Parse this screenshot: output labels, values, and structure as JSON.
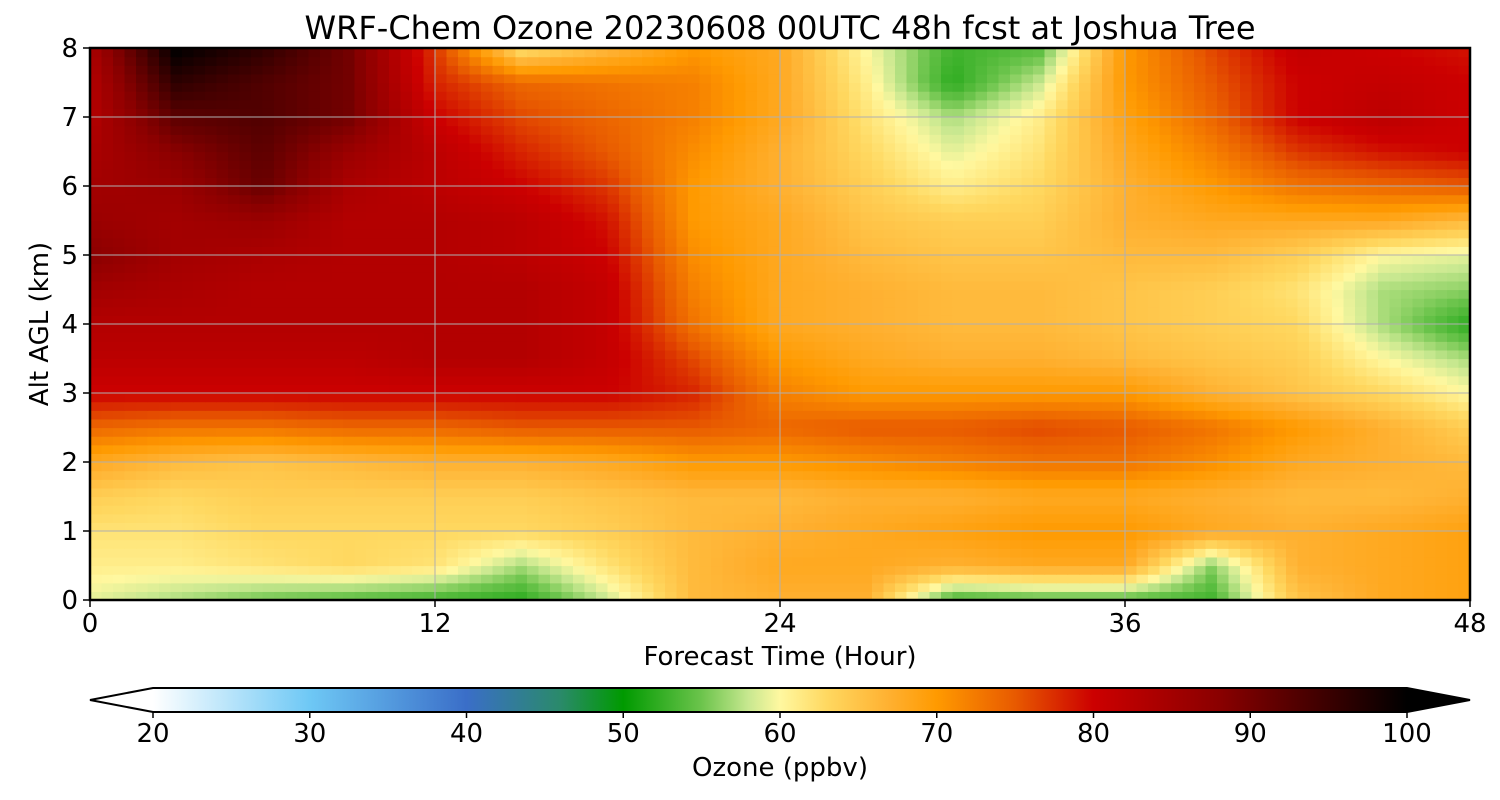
{
  "chart_data": {
    "type": "heatmap",
    "title": "WRF-Chem Ozone  20230608 00UTC 48h fcst at Joshua Tree",
    "xlabel": "Forecast Time (Hour)",
    "ylabel": "Alt AGL (km)",
    "xlim": [
      0,
      48
    ],
    "ylim": [
      0,
      8
    ],
    "xticks": [
      0,
      12,
      24,
      36,
      48
    ],
    "yticks": [
      0,
      1,
      2,
      3,
      4,
      5,
      6,
      7,
      8
    ],
    "grid": true,
    "x": [
      0,
      3,
      6,
      9,
      12,
      15,
      18,
      21,
      24,
      27,
      30,
      33,
      36,
      39,
      42,
      45,
      48
    ],
    "y": [
      0,
      0.5,
      1,
      1.5,
      2,
      2.5,
      3,
      3.5,
      4,
      4.5,
      5,
      5.5,
      6,
      6.5,
      7,
      7.5,
      8
    ],
    "z": [
      [
        59,
        57,
        55,
        54,
        53,
        52,
        58,
        66,
        67,
        67,
        53,
        54,
        54,
        53,
        65,
        68,
        69
      ],
      [
        61,
        61,
        62,
        63,
        62,
        57,
        62,
        66,
        68,
        68,
        67,
        68,
        68,
        56,
        67,
        68,
        69
      ],
      [
        62,
        62,
        63,
        63,
        63,
        63,
        64,
        66,
        67,
        68,
        69,
        70,
        70,
        68,
        67,
        68,
        69
      ],
      [
        64,
        63,
        64,
        64,
        64,
        64,
        65,
        66,
        66,
        67,
        67,
        68,
        68,
        67,
        66,
        66,
        67
      ],
      [
        68,
        66,
        65,
        66,
        67,
        67,
        68,
        70,
        70,
        71,
        72,
        73,
        73,
        71,
        68,
        67,
        66
      ],
      [
        74,
        73,
        73,
        74,
        74,
        75,
        75,
        75,
        74,
        75,
        75,
        76,
        75,
        73,
        70,
        67,
        64
      ],
      [
        80,
        80,
        80,
        80,
        80,
        80,
        80,
        78,
        72,
        70,
        70,
        70,
        70,
        67,
        65,
        63,
        60
      ],
      [
        82,
        82,
        82,
        82,
        83,
        83,
        81,
        76,
        70,
        68,
        67,
        67,
        66,
        65,
        64,
        60,
        57
      ],
      [
        83,
        83,
        83,
        83,
        83,
        83,
        81,
        73,
        68,
        67,
        66,
        66,
        65,
        64,
        63,
        57,
        52
      ],
      [
        85,
        84,
        83,
        83,
        83,
        83,
        81,
        72,
        68,
        67,
        66,
        66,
        65,
        64,
        62,
        57,
        56
      ],
      [
        88,
        85,
        84,
        83,
        83,
        82,
        80,
        71,
        68,
        66,
        65,
        65,
        66,
        66,
        64,
        60,
        59
      ],
      [
        86,
        85,
        86,
        83,
        83,
        82,
        79,
        70,
        68,
        65,
        64,
        64,
        67,
        68,
        68,
        68,
        66
      ],
      [
        85,
        86,
        91,
        84,
        82,
        80,
        77,
        70,
        67,
        64,
        61,
        63,
        67,
        70,
        73,
        74,
        75
      ],
      [
        84,
        88,
        92,
        86,
        82,
        78,
        75,
        71,
        67,
        63,
        59,
        62,
        68,
        72,
        77,
        79,
        80
      ],
      [
        83,
        92,
        93,
        90,
        80,
        76,
        74,
        72,
        68,
        62,
        57,
        61,
        69,
        74,
        80,
        82,
        80
      ],
      [
        83,
        96,
        93,
        90,
        78,
        74,
        73,
        72,
        68,
        61,
        52,
        58,
        70,
        75,
        80,
        81,
        80
      ],
      [
        84,
        100,
        96,
        90,
        77,
        62,
        66,
        70,
        68,
        60,
        53,
        54,
        70,
        76,
        81,
        80,
        79
      ]
    ],
    "colorbar": {
      "label": "Ozone  (ppbv)",
      "min": 20,
      "max": 100,
      "ticks": [
        20,
        30,
        40,
        50,
        60,
        70,
        80,
        90,
        100
      ],
      "extend": "both",
      "stops": [
        [
          20,
          "#ffffff"
        ],
        [
          30,
          "#6ec8f5"
        ],
        [
          40,
          "#3a6ec8"
        ],
        [
          46,
          "#2a8a6a"
        ],
        [
          50,
          "#009a00"
        ],
        [
          55,
          "#6cc44c"
        ],
        [
          58,
          "#c8e890"
        ],
        [
          60,
          "#fff8a0"
        ],
        [
          63,
          "#ffd860"
        ],
        [
          67,
          "#ffb030"
        ],
        [
          70,
          "#ff9a00"
        ],
        [
          75,
          "#e85a00"
        ],
        [
          80,
          "#cc0000"
        ],
        [
          88,
          "#8a0000"
        ],
        [
          95,
          "#3a0000"
        ],
        [
          100,
          "#000000"
        ]
      ]
    }
  }
}
